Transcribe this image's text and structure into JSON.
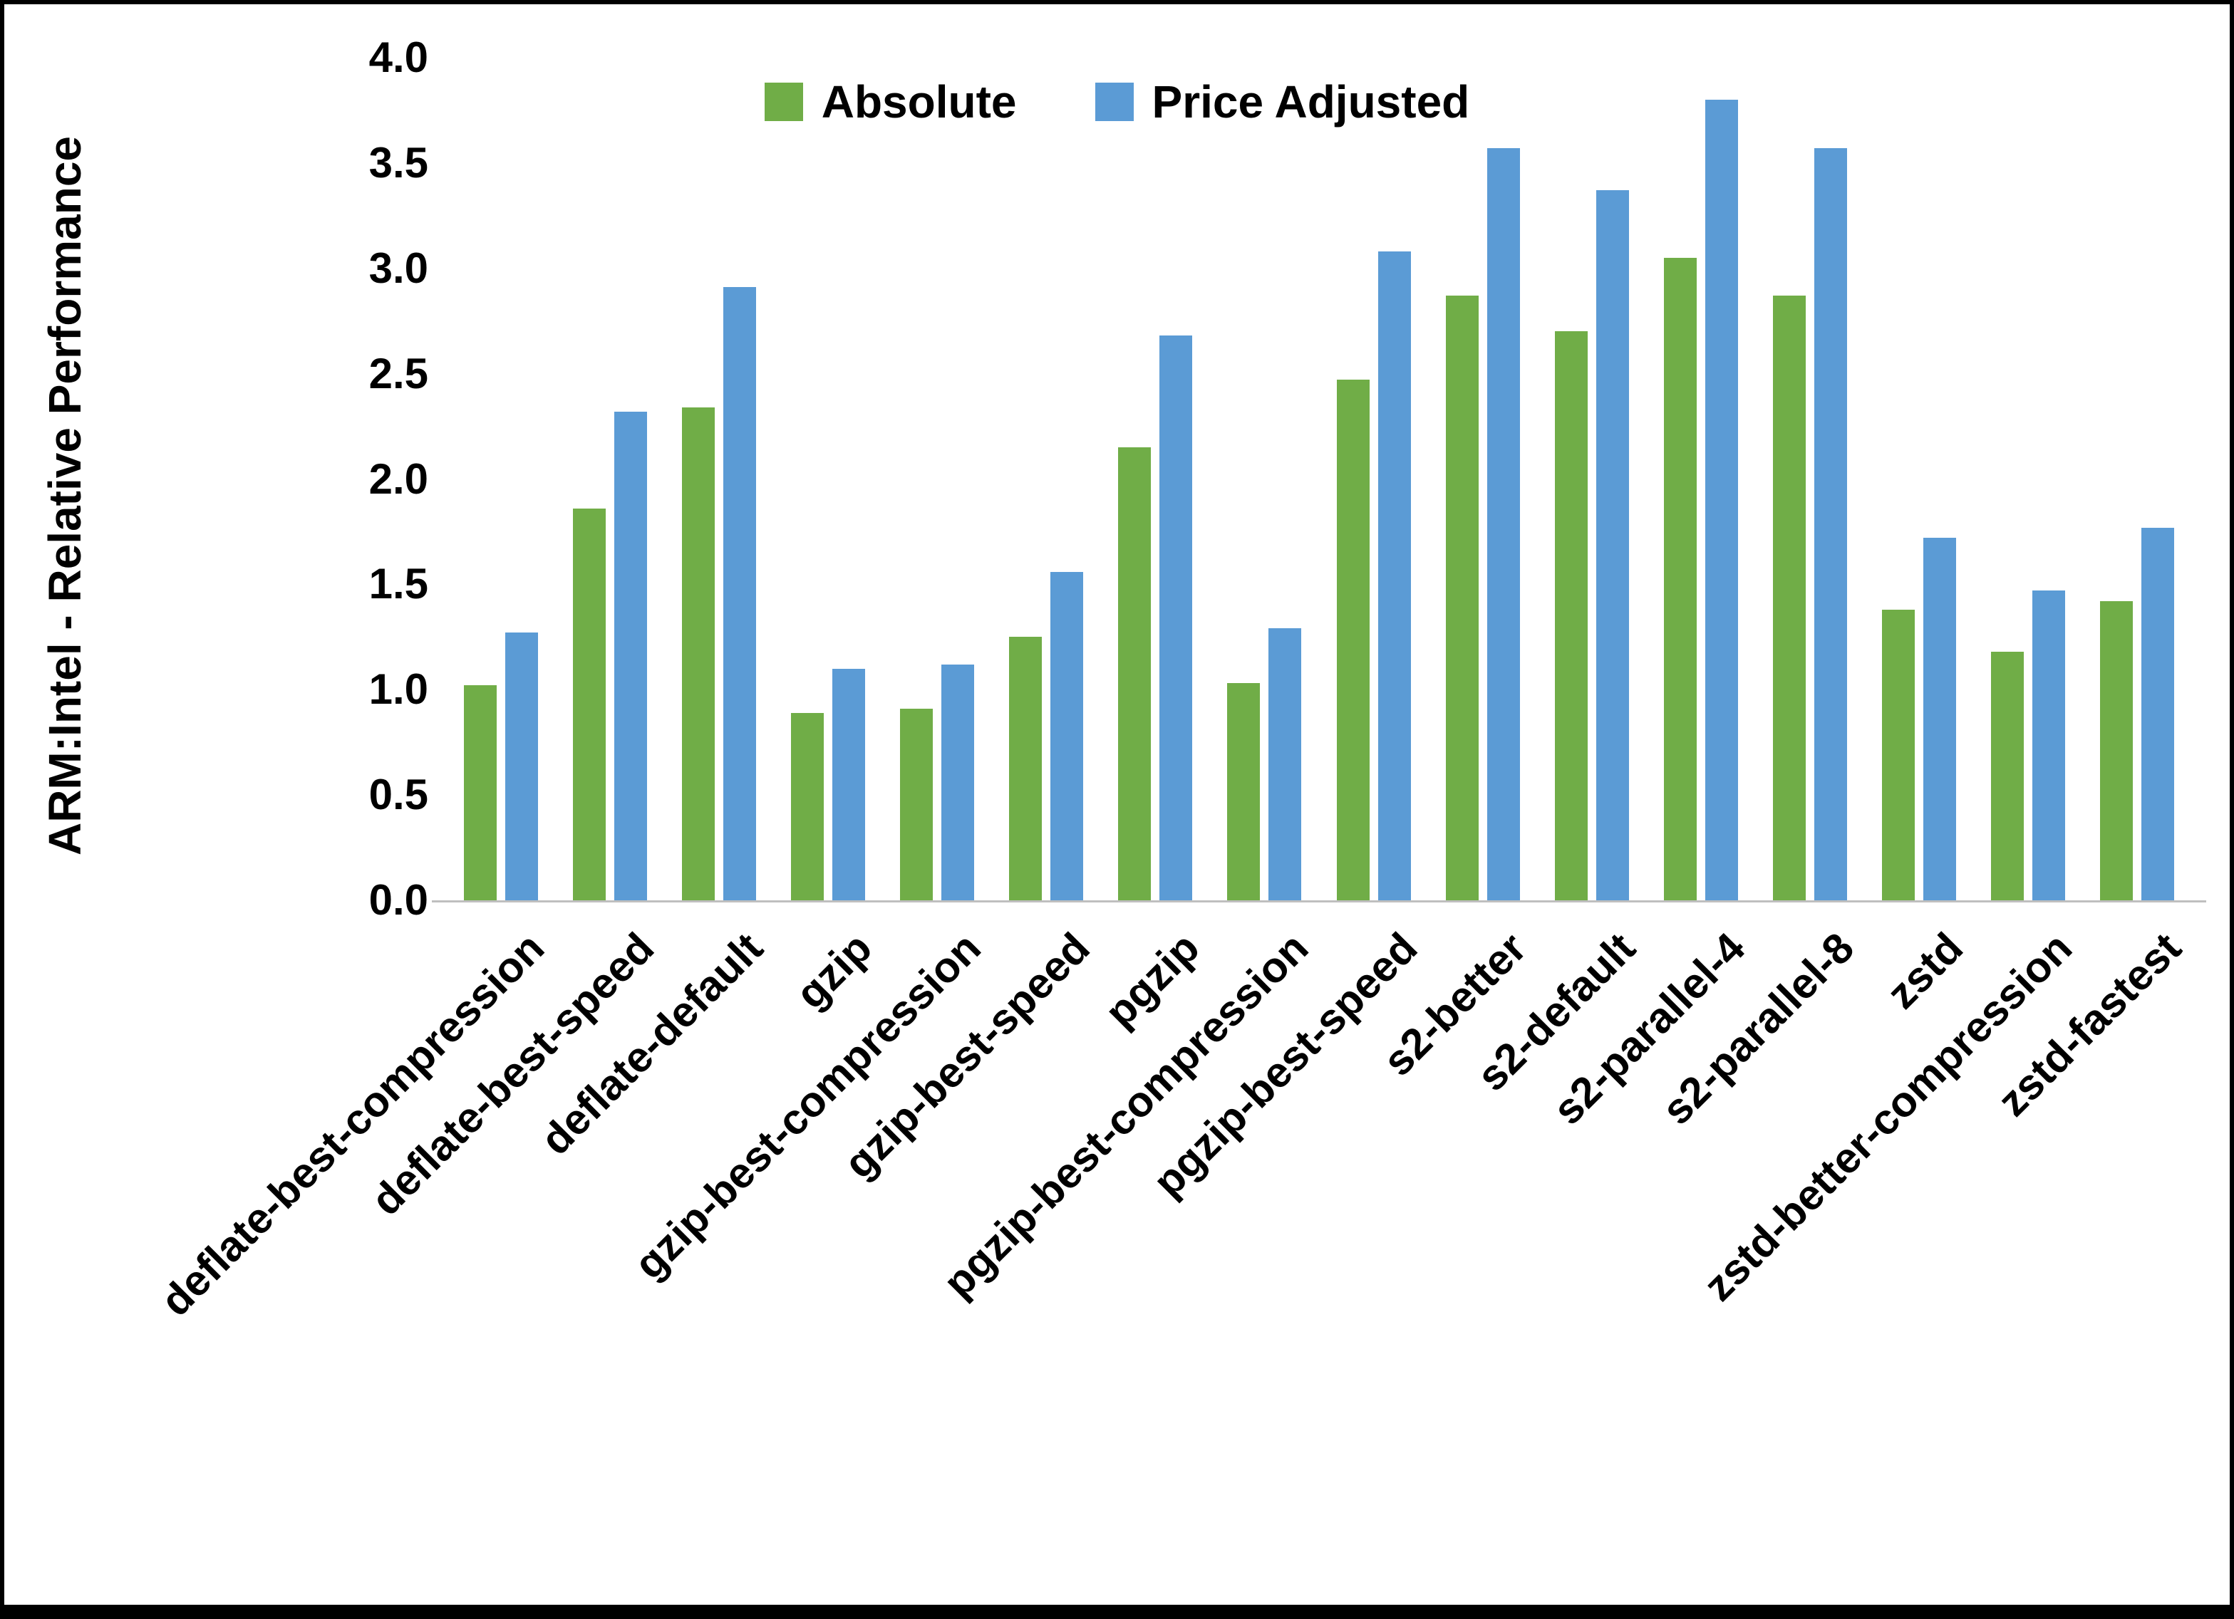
{
  "figure": {
    "background": "#FFFFFF",
    "border_color": "#000000"
  },
  "chart_data": {
    "type": "bar",
    "title": "",
    "xlabel": "",
    "ylabel": "ARM:Intel - Relative Performance",
    "ylim": [
      0,
      4.0
    ],
    "ytick_step": 0.5,
    "yticks": [
      "0.0",
      "0.5",
      "1.0",
      "1.5",
      "2.0",
      "2.5",
      "3.0",
      "3.5",
      "4.0"
    ],
    "grid": false,
    "legend_position": "top",
    "axis_line_color": "#BFBFBF",
    "categories": [
      "deflate-best-compression",
      "deflate-best-speed",
      "deflate-default",
      "gzip",
      "gzip-best-compression",
      "gzip-best-speed",
      "pgzip",
      "pgzip-best-compression",
      "pgzip-best-speed",
      "s2-better",
      "s2-default",
      "s2-parallel-4",
      "s2-parallel-8",
      "zstd",
      "zstd-better-compression",
      "zstd-fastest"
    ],
    "series": [
      {
        "name": "Absolute",
        "color": "#70AD47",
        "values": [
          1.02,
          1.86,
          2.34,
          0.89,
          0.91,
          1.25,
          2.15,
          1.03,
          2.47,
          2.87,
          2.7,
          3.05,
          2.87,
          1.38,
          1.18,
          1.42
        ]
      },
      {
        "name": "Price Adjusted",
        "color": "#5B9BD5",
        "values": [
          1.27,
          2.32,
          2.91,
          1.1,
          1.12,
          1.56,
          2.68,
          1.29,
          3.08,
          3.57,
          3.37,
          3.8,
          3.57,
          1.72,
          1.47,
          1.77
        ]
      }
    ]
  }
}
